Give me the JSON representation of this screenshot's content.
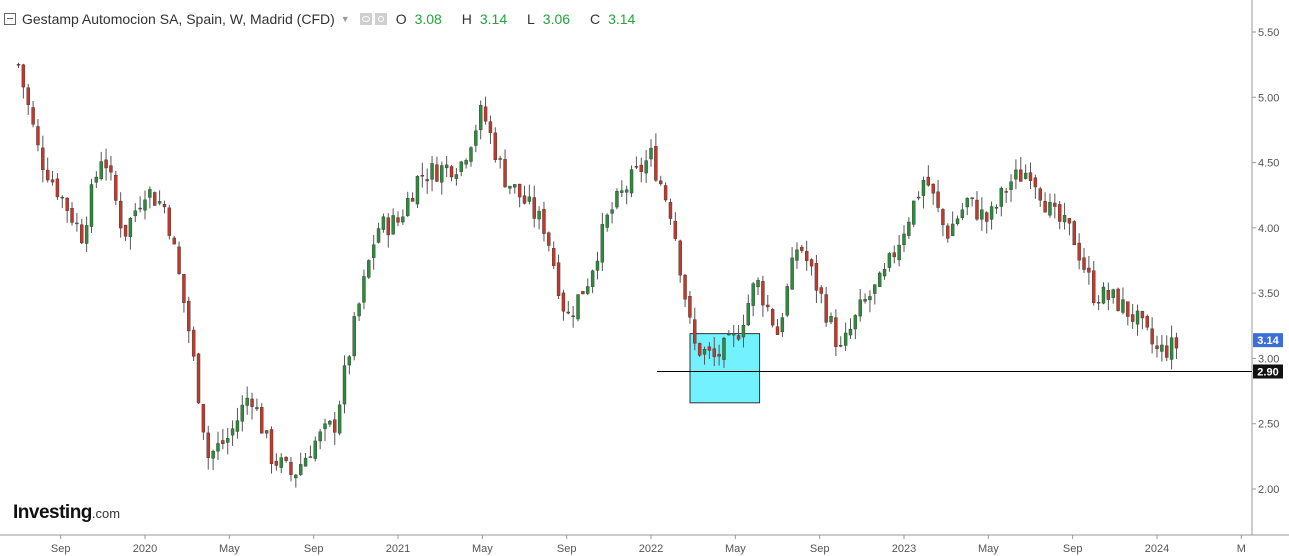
{
  "header": {
    "title": "Gestamp Automocion SA, Spain, W, Madrid (CFD)",
    "open_label": "O",
    "open": "3.08",
    "high_label": "H",
    "high": "3.14",
    "low_label": "L",
    "low": "3.06",
    "close_label": "C",
    "close": "3.14"
  },
  "logo": {
    "brand": "Investing",
    "domain": ".com"
  },
  "colors": {
    "up": "#2e8b3a",
    "down": "#c0392b",
    "wick": "#555555",
    "highlight": "#00e5ff",
    "support": "#000000",
    "price_tag": "#3b6fd8"
  },
  "chart_data": {
    "type": "candlestick",
    "timeframe": "weekly",
    "x_ticks": [
      "Sep",
      "2020",
      "May",
      "Sep",
      "2021",
      "May",
      "Sep",
      "2022",
      "May",
      "Sep",
      "2023",
      "May",
      "Sep",
      "2024",
      "M"
    ],
    "y_ticks": [
      "5.50",
      "5.00",
      "4.50",
      "4.00",
      "3.50",
      "3.00",
      "2.50",
      "2.00"
    ],
    "ylim": [
      1.62,
      5.75
    ],
    "support_level": 2.9,
    "support_label": "2.90",
    "last_price": 3.14,
    "last_price_label": "3.14",
    "highlight_zone": {
      "from": "2022-03",
      "to": "2022-06",
      "low": 2.66,
      "high": 3.19
    },
    "anchors": [
      [
        "2019-07",
        5.25
      ],
      [
        "2019-08",
        4.55
      ],
      [
        "2019-10",
        3.95
      ],
      [
        "2019-11",
        4.6
      ],
      [
        "2019-12",
        3.95
      ],
      [
        "2020-01",
        4.3
      ],
      [
        "2020-02",
        4.15
      ],
      [
        "2020-03",
        3.3
      ],
      [
        "2020-04",
        2.25
      ],
      [
        "2020-05",
        2.4
      ],
      [
        "2020-06",
        2.75
      ],
      [
        "2020-07",
        2.25
      ],
      [
        "2020-08",
        2.1
      ],
      [
        "2020-09",
        2.35
      ],
      [
        "2020-10",
        2.5
      ],
      [
        "2020-11",
        3.3
      ],
      [
        "2020-12",
        4.0
      ],
      [
        "2021-01",
        4.05
      ],
      [
        "2021-02",
        4.4
      ],
      [
        "2021-04",
        4.5
      ],
      [
        "2021-05",
        4.9
      ],
      [
        "2021-06",
        4.4
      ],
      [
        "2021-08",
        4.0
      ],
      [
        "2021-09",
        3.3
      ],
      [
        "2021-10",
        3.6
      ],
      [
        "2021-11",
        4.1
      ],
      [
        "2021-12",
        4.35
      ],
      [
        "2022-01",
        4.55
      ],
      [
        "2022-02",
        4.1
      ],
      [
        "2022-03",
        3.1
      ],
      [
        "2022-04",
        3.0
      ],
      [
        "2022-05",
        3.15
      ],
      [
        "2022-06",
        3.6
      ],
      [
        "2022-07",
        3.2
      ],
      [
        "2022-08",
        3.9
      ],
      [
        "2022-09",
        3.5
      ],
      [
        "2022-10",
        3.05
      ],
      [
        "2022-11",
        3.4
      ],
      [
        "2022-12",
        3.6
      ],
      [
        "2023-01",
        4.0
      ],
      [
        "2023-02",
        4.4
      ],
      [
        "2023-03",
        3.95
      ],
      [
        "2023-04",
        4.2
      ],
      [
        "2023-05",
        4.05
      ],
      [
        "2023-06",
        4.35
      ],
      [
        "2023-07",
        4.45
      ],
      [
        "2023-08",
        4.1
      ],
      [
        "2023-09",
        3.95
      ],
      [
        "2023-10",
        3.5
      ],
      [
        "2023-11",
        3.45
      ],
      [
        "2023-12",
        3.3
      ],
      [
        "2024-01",
        3.05
      ],
      [
        "2024-02",
        3.1
      ]
    ]
  }
}
